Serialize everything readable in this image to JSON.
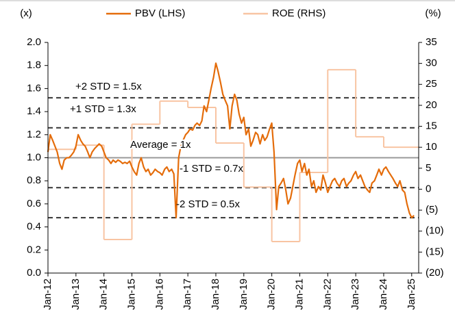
{
  "chart_data": {
    "type": "line",
    "ylabel": "(x)",
    "y2label": "(%)",
    "xlim": [
      2012,
      2025.25
    ],
    "xticks": [
      {
        "value": 2012,
        "label": "Jan-12"
      },
      {
        "value": 2013,
        "label": "Jan-13"
      },
      {
        "value": 2014,
        "label": "Jan-14"
      },
      {
        "value": 2015,
        "label": "Jan-15"
      },
      {
        "value": 2016,
        "label": "Jan-16"
      },
      {
        "value": 2017,
        "label": "Jan-17"
      },
      {
        "value": 2018,
        "label": "Jan-18"
      },
      {
        "value": 2019,
        "label": "Jan-19"
      },
      {
        "value": 2020,
        "label": "Jan-20"
      },
      {
        "value": 2021,
        "label": "Jan-21"
      },
      {
        "value": 2022,
        "label": "Jan-22"
      },
      {
        "value": 2023,
        "label": "Jan-23"
      },
      {
        "value": 2024,
        "label": "Jan-24"
      },
      {
        "value": 2025,
        "label": "Jan-25"
      }
    ],
    "ylim": [
      0,
      2
    ],
    "yticks": [
      {
        "value": 0,
        "label": "0.0"
      },
      0.2,
      0.4,
      0.6,
      0.8,
      {
        "value": 1,
        "label": "1.0"
      },
      1.2,
      1.4,
      1.6,
      1.8,
      {
        "value": 2,
        "label": "2.0"
      }
    ],
    "y2lim": [
      -20,
      35
    ],
    "y2ticks": [
      {
        "value": -20,
        "label": "(20)"
      },
      {
        "value": -15,
        "label": "(15)"
      },
      {
        "value": -10,
        "label": "(10)"
      },
      {
        "value": -5,
        "label": "(5)"
      },
      0,
      5,
      10,
      15,
      20,
      25,
      30,
      35
    ],
    "reference_lines": [
      {
        "value": 1.52,
        "label": "+2 STD = 1.5x",
        "style": "dashed",
        "color": "#333333"
      },
      {
        "value": 1.26,
        "label": "+1 STD = 1.3x",
        "style": "dashed",
        "color": "#333333"
      },
      {
        "value": 1.0,
        "label": "Average = 1x",
        "style": "solid",
        "color": "#999999"
      },
      {
        "value": 0.74,
        "label": "-1 STD = 0.7x",
        "style": "dashed",
        "color": "#333333"
      },
      {
        "value": 0.48,
        "label": "-2 STD = 0.5x",
        "style": "dashed",
        "color": "#333333"
      }
    ],
    "legend": "top",
    "series": [
      {
        "name": "PBV (LHS)",
        "color": "#e46c0a",
        "axis": "y",
        "draw": "line",
        "x": [
          2012.0,
          2012.08,
          2012.17,
          2012.25,
          2012.33,
          2012.42,
          2012.5,
          2012.58,
          2012.67,
          2012.75,
          2012.83,
          2012.92,
          2013.0,
          2013.08,
          2013.17,
          2013.25,
          2013.33,
          2013.42,
          2013.5,
          2013.58,
          2013.67,
          2013.75,
          2013.83,
          2013.92,
          2014.0,
          2014.08,
          2014.17,
          2014.25,
          2014.33,
          2014.42,
          2014.5,
          2014.58,
          2014.67,
          2014.75,
          2014.83,
          2014.92,
          2015.0,
          2015.08,
          2015.17,
          2015.25,
          2015.33,
          2015.42,
          2015.5,
          2015.58,
          2015.67,
          2015.75,
          2015.83,
          2015.92,
          2016.0,
          2016.08,
          2016.17,
          2016.25,
          2016.33,
          2016.42,
          2016.5,
          2016.58,
          2016.67,
          2016.75,
          2016.83,
          2016.92,
          2017.0,
          2017.08,
          2017.17,
          2017.25,
          2017.33,
          2017.42,
          2017.5,
          2017.58,
          2017.67,
          2017.75,
          2017.83,
          2017.92,
          2018.0,
          2018.08,
          2018.17,
          2018.25,
          2018.33,
          2018.42,
          2018.5,
          2018.58,
          2018.67,
          2018.75,
          2018.83,
          2018.92,
          2019.0,
          2019.08,
          2019.17,
          2019.25,
          2019.33,
          2019.42,
          2019.5,
          2019.58,
          2019.67,
          2019.75,
          2019.83,
          2019.92,
          2020.0,
          2020.08,
          2020.17,
          2020.25,
          2020.33,
          2020.42,
          2020.5,
          2020.58,
          2020.67,
          2020.75,
          2020.83,
          2020.92,
          2021.0,
          2021.08,
          2021.17,
          2021.25,
          2021.33,
          2021.42,
          2021.5,
          2021.58,
          2021.67,
          2021.75,
          2021.83,
          2021.92,
          2022.0,
          2022.08,
          2022.17,
          2022.25,
          2022.33,
          2022.42,
          2022.5,
          2022.58,
          2022.67,
          2022.75,
          2022.83,
          2022.92,
          2023.0,
          2023.08,
          2023.17,
          2023.25,
          2023.33,
          2023.42,
          2023.5,
          2023.58,
          2023.67,
          2023.75,
          2023.83,
          2023.92,
          2024.0,
          2024.08,
          2024.17,
          2024.25,
          2024.33,
          2024.42,
          2024.5,
          2024.58,
          2024.67,
          2024.75,
          2024.83,
          2024.92,
          2025.0,
          2025.08
        ],
        "values": [
          1.05,
          1.2,
          1.15,
          1.1,
          1.05,
          0.95,
          0.9,
          0.98,
          1.0,
          1.0,
          1.02,
          1.05,
          1.1,
          1.2,
          1.15,
          1.12,
          1.1,
          1.05,
          1.0,
          1.05,
          1.08,
          1.1,
          1.12,
          1.1,
          1.05,
          1.0,
          0.98,
          0.95,
          0.98,
          0.96,
          0.98,
          0.97,
          0.95,
          0.96,
          0.95,
          0.97,
          0.92,
          0.88,
          0.85,
          0.95,
          1.0,
          0.92,
          0.88,
          0.9,
          0.85,
          0.87,
          0.9,
          0.88,
          0.87,
          0.85,
          0.9,
          0.92,
          0.88,
          0.9,
          0.86,
          0.48,
          1.0,
          1.1,
          1.15,
          1.2,
          1.22,
          1.25,
          1.24,
          1.28,
          1.3,
          1.28,
          1.32,
          1.45,
          1.4,
          1.5,
          1.6,
          1.7,
          1.82,
          1.75,
          1.65,
          1.55,
          1.5,
          1.45,
          1.25,
          1.45,
          1.55,
          1.5,
          1.38,
          1.3,
          1.35,
          1.2,
          1.25,
          1.1,
          1.15,
          1.22,
          1.2,
          1.12,
          1.2,
          1.15,
          1.18,
          1.25,
          1.3,
          1.05,
          0.55,
          0.75,
          0.78,
          0.82,
          0.72,
          0.6,
          0.65,
          0.75,
          0.85,
          0.95,
          0.98,
          0.88,
          0.95,
          0.85,
          0.9,
          0.75,
          0.8,
          0.7,
          0.75,
          0.72,
          0.85,
          0.78,
          0.7,
          0.75,
          0.8,
          0.82,
          0.78,
          0.75,
          0.8,
          0.82,
          0.75,
          0.78,
          0.8,
          0.85,
          0.88,
          0.82,
          0.85,
          0.8,
          0.75,
          0.72,
          0.7,
          0.78,
          0.8,
          0.85,
          0.9,
          0.85,
          0.9,
          0.92,
          0.88,
          0.85,
          0.82,
          0.78,
          0.75,
          0.8,
          0.72,
          0.7,
          0.6,
          0.52,
          0.48,
          0.5
        ]
      },
      {
        "name": "ROE (RHS)",
        "color": "#f8c4a2",
        "axis": "y2",
        "draw": "step",
        "x": [
          2012,
          2013,
          2014,
          2015,
          2016,
          2017,
          2018,
          2019,
          2020,
          2021,
          2022,
          2023,
          2024
        ],
        "values": [
          9.5,
          10.5,
          -12,
          15.5,
          21,
          19.5,
          11,
          0.5,
          -12.5,
          4,
          28.5,
          12.5,
          10
        ]
      }
    ]
  }
}
